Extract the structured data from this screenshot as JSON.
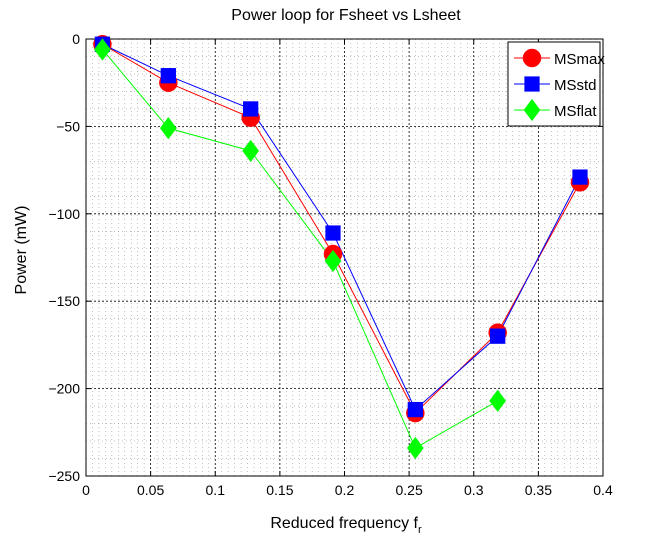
{
  "chart_data": {
    "type": "line",
    "title": "Power loop for Fsheet vs Lsheet",
    "xlabel": "Reduced frequency f",
    "xlabel_subscript": "r",
    "ylabel": "Power (mW)",
    "xlim": [
      0,
      0.4
    ],
    "ylim": [
      -250,
      0
    ],
    "xticks": [
      0,
      0.05,
      0.1,
      0.15,
      0.2,
      0.25,
      0.3,
      0.35,
      0.4
    ],
    "xtick_labels": [
      "0",
      "0.05",
      "0.1",
      "0.15",
      "0.2",
      "0.25",
      "0.3",
      "0.35",
      "0.4"
    ],
    "yticks": [
      0,
      -50,
      -100,
      -150,
      -200,
      -250
    ],
    "ytick_labels": [
      "0",
      "−50",
      "−100",
      "−150",
      "−200",
      "−250"
    ],
    "grid": "major and minor, dotted",
    "legend_position": "top-right",
    "series": [
      {
        "name": "MSmax",
        "color": "#ff0000",
        "marker": "circle",
        "x": [
          0.0127,
          0.0637,
          0.1274,
          0.1911,
          0.2548,
          0.3185,
          0.3822
        ],
        "y": [
          -3,
          -25,
          -45,
          -123,
          -214,
          -168,
          -82
        ]
      },
      {
        "name": "MSstd",
        "color": "#0000ff",
        "marker": "square",
        "x": [
          0.0127,
          0.0637,
          0.1274,
          0.1911,
          0.2548,
          0.3185,
          0.3822
        ],
        "y": [
          -3,
          -21,
          -40,
          -111,
          -212,
          -170,
          -79
        ]
      },
      {
        "name": "MSflat",
        "color": "#00ff00",
        "marker": "diamond",
        "x": [
          0.0127,
          0.0637,
          0.1274,
          0.1911,
          0.2548,
          0.3185
        ],
        "y": [
          -6,
          -51,
          -64,
          -127,
          -234,
          -207
        ]
      }
    ]
  }
}
